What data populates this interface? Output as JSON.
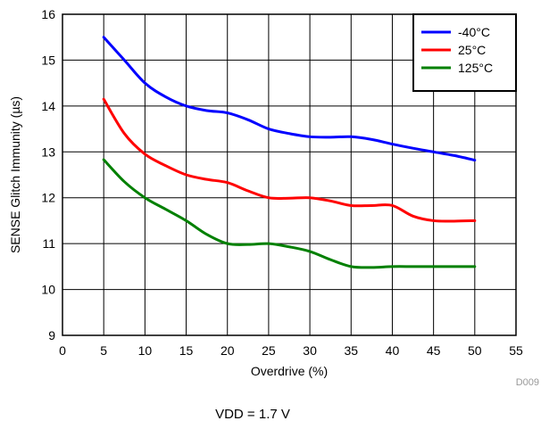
{
  "chart_data": {
    "type": "line",
    "xlabel": "Overdrive (%)",
    "ylabel": "SENSE Glitch Immunity (µs)",
    "xlim": [
      0,
      55
    ],
    "ylim": [
      9,
      16
    ],
    "xticks": [
      0,
      5,
      10,
      15,
      20,
      25,
      30,
      35,
      40,
      45,
      50,
      55
    ],
    "yticks": [
      9,
      10,
      11,
      12,
      13,
      14,
      15,
      16
    ],
    "grid": true,
    "legend_position": "top-right",
    "series": [
      {
        "name": "-40°C",
        "color": "#0000ff",
        "x": [
          5,
          7.5,
          10,
          12.5,
          15,
          17.5,
          20,
          22.5,
          25,
          27.5,
          30,
          32.5,
          35,
          37.5,
          40,
          42.5,
          45,
          47.5,
          50
        ],
        "y": [
          15.5,
          15.0,
          14.5,
          14.2,
          14.0,
          13.9,
          13.85,
          13.7,
          13.5,
          13.4,
          13.33,
          13.32,
          13.33,
          13.27,
          13.17,
          13.08,
          13.0,
          12.92,
          12.82
        ]
      },
      {
        "name": "25°C",
        "color": "#ff0000",
        "x": [
          5,
          7.5,
          10,
          12.5,
          15,
          17.5,
          20,
          22.5,
          25,
          27.5,
          30,
          32.5,
          35,
          37.5,
          40,
          42.5,
          45,
          47.5,
          50
        ],
        "y": [
          14.15,
          13.4,
          12.95,
          12.7,
          12.5,
          12.4,
          12.33,
          12.15,
          12.0,
          11.99,
          12.0,
          11.93,
          11.83,
          11.83,
          11.83,
          11.6,
          11.5,
          11.49,
          11.5
        ]
      },
      {
        "name": "125°C",
        "color": "#008000",
        "x": [
          5,
          7.5,
          10,
          12.5,
          15,
          17.5,
          20,
          22.5,
          25,
          27.5,
          30,
          32.5,
          35,
          37.5,
          40,
          42.5,
          45,
          47.5,
          50
        ],
        "y": [
          12.83,
          12.35,
          12.0,
          11.75,
          11.5,
          11.2,
          11.0,
          10.98,
          11.0,
          10.93,
          10.83,
          10.65,
          10.5,
          10.48,
          10.5,
          10.5,
          10.5,
          10.5,
          10.5
        ]
      }
    ],
    "figure_id": "D009",
    "caption": "VDD = 1.7 V"
  }
}
